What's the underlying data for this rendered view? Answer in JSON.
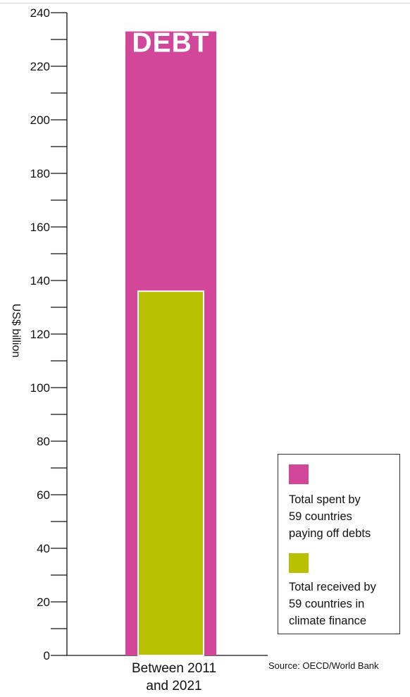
{
  "chart_data": {
    "type": "bar",
    "categories": [
      "Between 2011 and 2021"
    ],
    "category_lines": [
      "Between 2011",
      "and 2021"
    ],
    "series": [
      {
        "name": "Total spent by 59 countries paying off debts",
        "values": [
          233
        ],
        "color": "#D2479A",
        "bar_label": "DEBT"
      },
      {
        "name": "Total received by 59 countries in climate finance",
        "values": [
          136
        ],
        "color": "#B9C000"
      }
    ],
    "ylabel": "US$ billion",
    "ylim": [
      0,
      240
    ],
    "yticks": [
      0,
      20,
      40,
      60,
      80,
      100,
      120,
      140,
      160,
      180,
      200,
      220,
      240
    ],
    "legend": {
      "position": "bottom-right",
      "entries": [
        {
          "lines": [
            "Total spent by",
            "59 countries",
            "paying off debts"
          ],
          "color": "#D2479A"
        },
        {
          "lines": [
            "Total received by",
            "59 countries in",
            "climate finance"
          ],
          "color": "#B9C000"
        }
      ]
    },
    "source": "Source: OECD/World Bank",
    "grid": false
  }
}
